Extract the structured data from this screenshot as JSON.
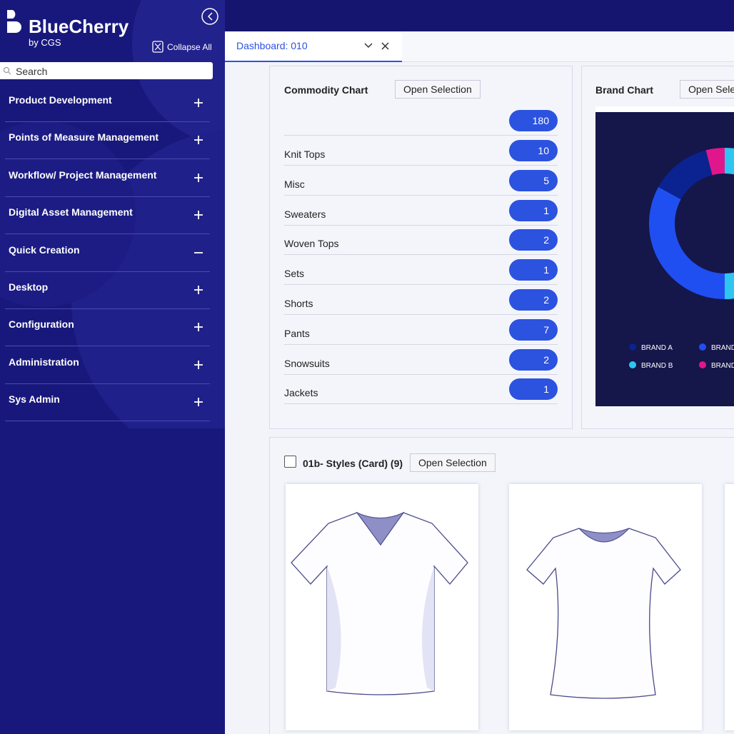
{
  "sidebar": {
    "brand": "BlueCherry",
    "byline": "by CGS",
    "collapse_all": "Collapse All",
    "search_placeholder": "Search",
    "menu": [
      {
        "label": "Product Development",
        "expanded": false
      },
      {
        "label": "Points of Measure Management",
        "expanded": false
      },
      {
        "label": "Workflow/ Project Management",
        "expanded": false
      },
      {
        "label": "Digital Asset Management",
        "expanded": false
      },
      {
        "label": "Quick Creation",
        "expanded": true
      },
      {
        "label": "Desktop",
        "expanded": false
      },
      {
        "label": "Configuration",
        "expanded": false
      },
      {
        "label": "Administration",
        "expanded": false
      },
      {
        "label": "Sys Admin",
        "expanded": false
      }
    ]
  },
  "tab": {
    "title": "Dashboard: 010"
  },
  "commodity_chart": {
    "title": "Commodity Chart",
    "button": "Open Selection",
    "total": 180,
    "rows": [
      {
        "label": "Knit Tops",
        "count": 10
      },
      {
        "label": "Misc",
        "count": 5
      },
      {
        "label": "Sweaters",
        "count": 1
      },
      {
        "label": "Woven Tops",
        "count": 2
      },
      {
        "label": "Sets",
        "count": 1
      },
      {
        "label": "Shorts",
        "count": 2
      },
      {
        "label": "Pants",
        "count": 7
      },
      {
        "label": "Snowsuits",
        "count": 2
      },
      {
        "label": "Jackets",
        "count": 1
      }
    ]
  },
  "brand_chart": {
    "title": "Brand Chart",
    "button": "Open Selection",
    "segments": [
      {
        "name": "BRAND B",
        "color": "#2ec5f0",
        "value": 50
      },
      {
        "name": "BRAND",
        "color": "#1f4ff0",
        "value": 33
      },
      {
        "name": "BRAND A",
        "color": "#0a2390",
        "value": 13
      },
      {
        "name": "BRAND",
        "color": "#e0178c",
        "value": 4
      }
    ]
  },
  "styles": {
    "title": "01b- Styles (Card) (9)",
    "button": "Open Selection"
  }
}
